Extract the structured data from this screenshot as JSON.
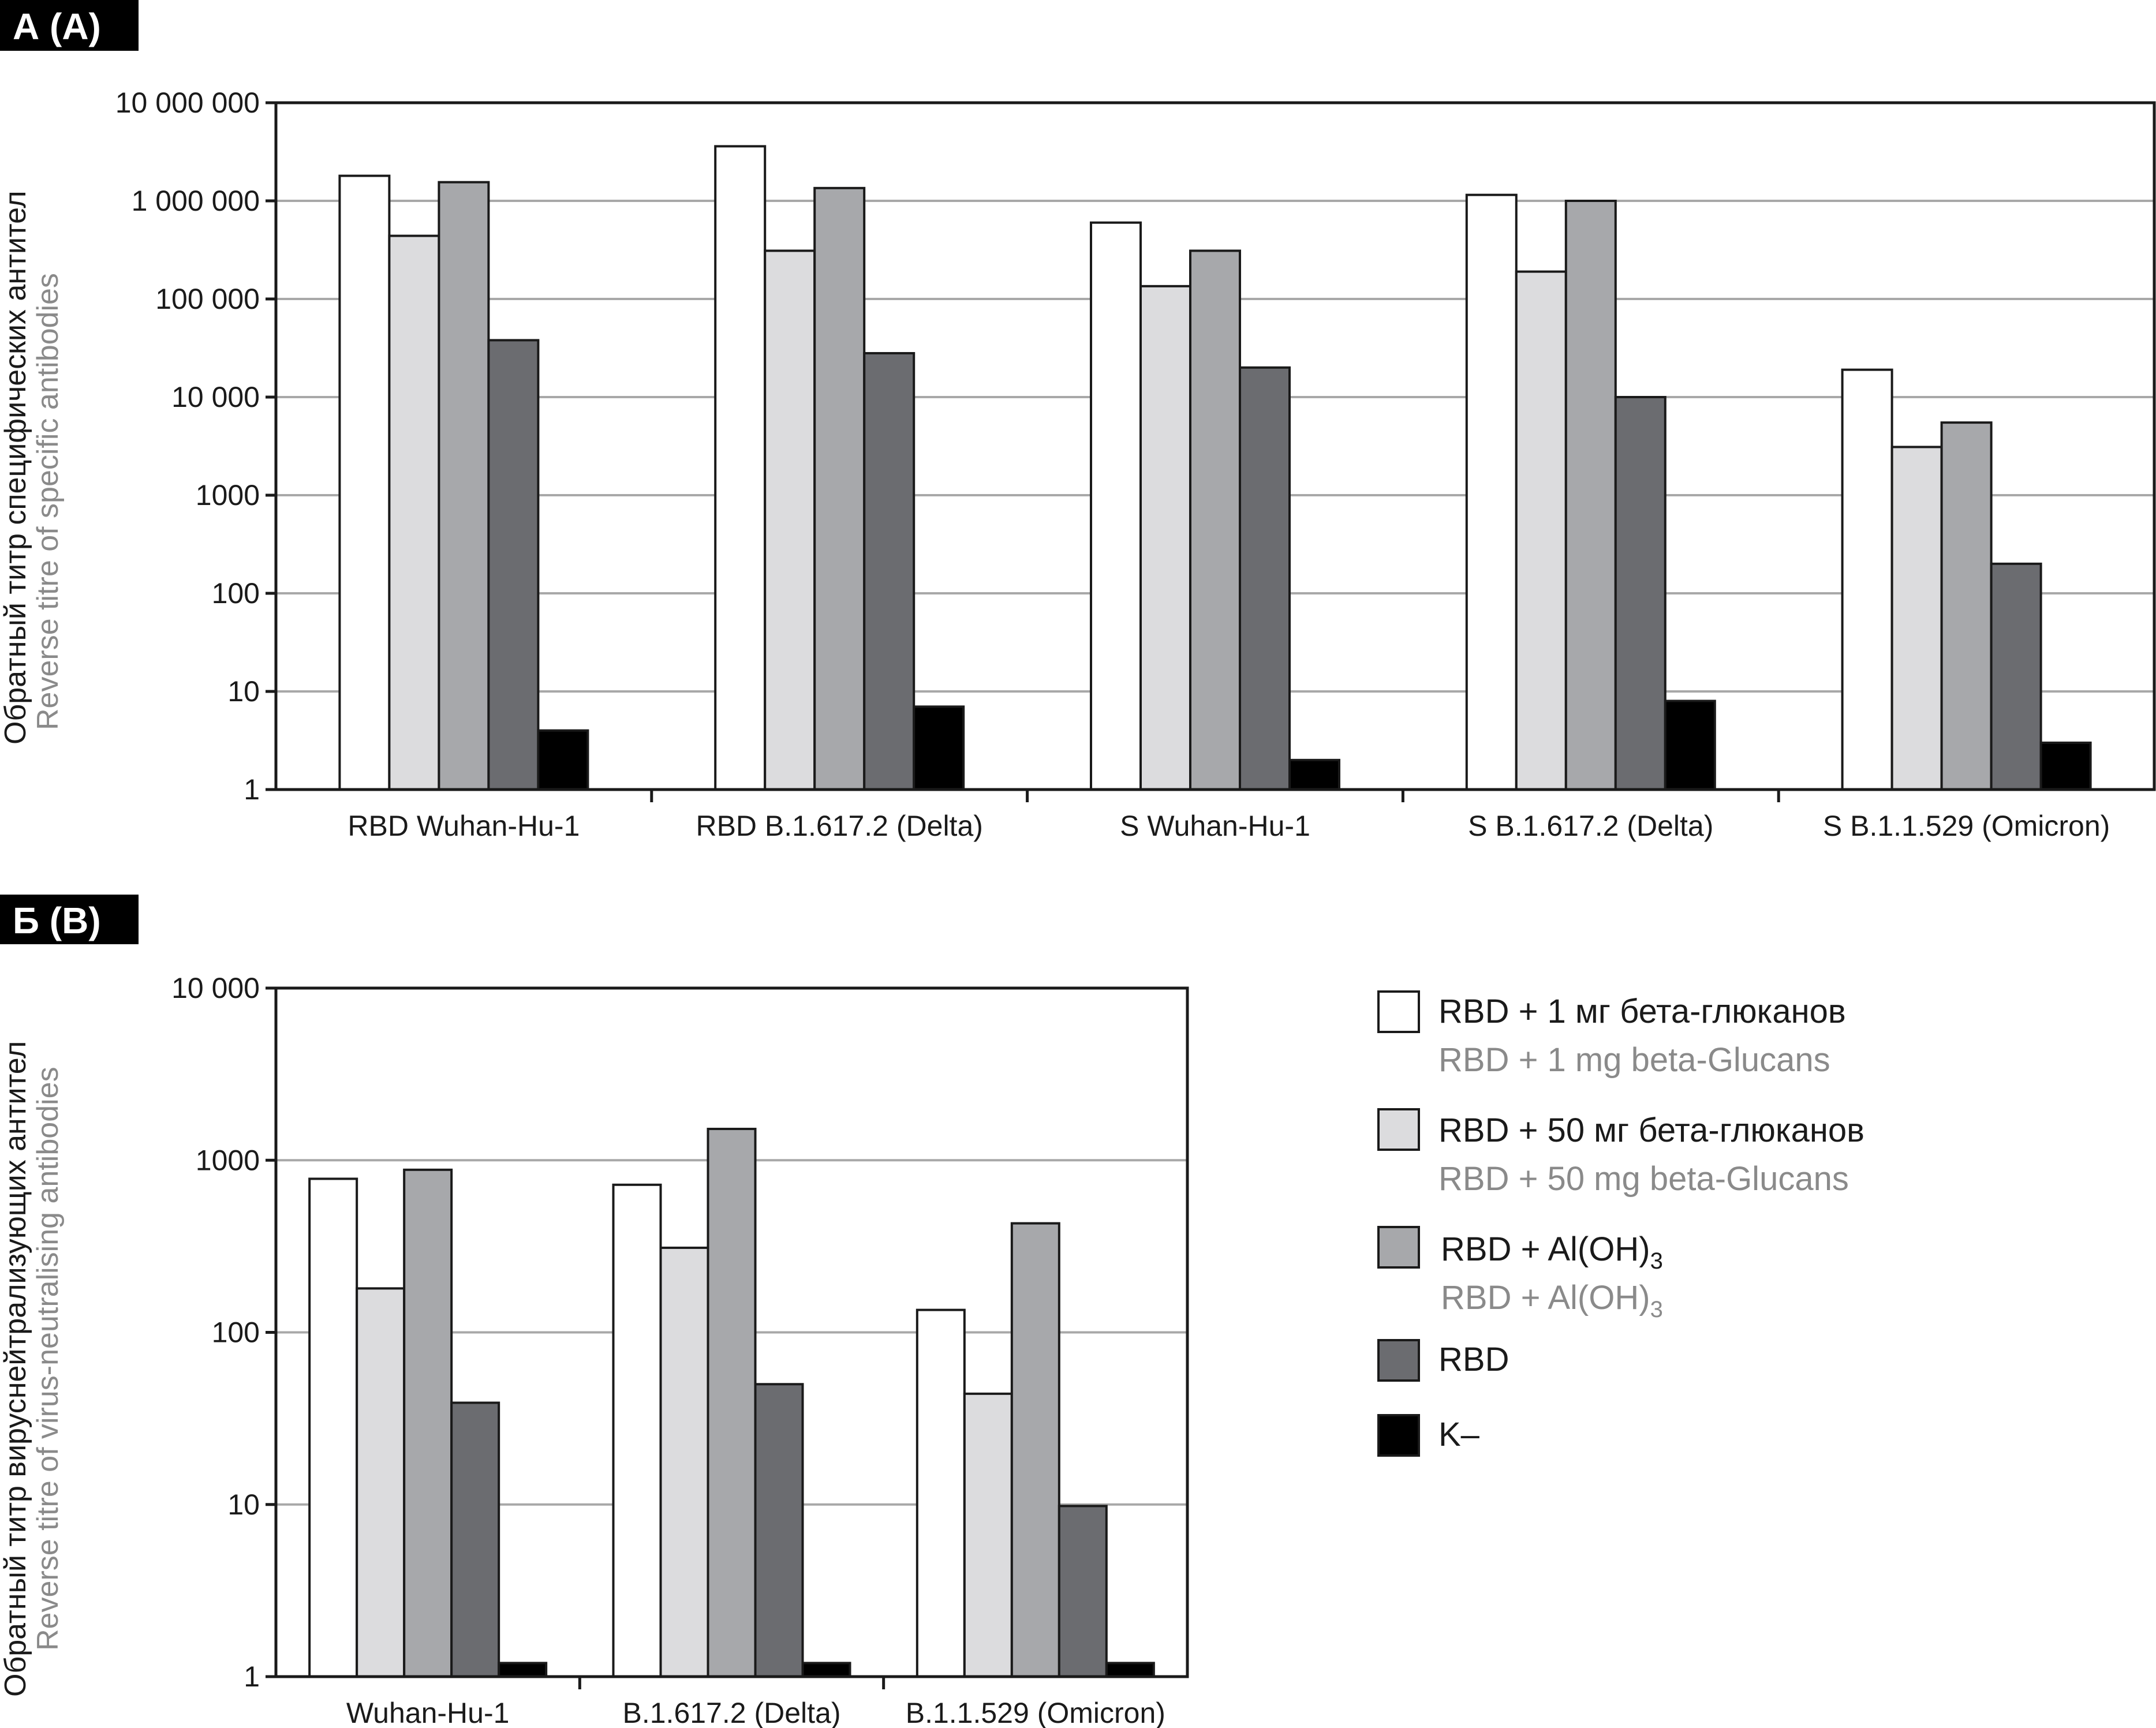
{
  "legend": {
    "items": [
      {
        "ru": "RBD + 1 мг бета-глюканов",
        "en": "RBD + 1 mg beta-Glucans",
        "color": "#ffffff"
      },
      {
        "ru": "RBD + 50 мг бета-глюканов",
        "en": "RBD + 50 mg beta-Glucans",
        "color": "#dcdcde"
      },
      {
        "ru": "RBD + Al(OH)",
        "en": "RBD + Al(OH)",
        "sub": "3",
        "color": "#a7a8ab"
      },
      {
        "ru": "RBD",
        "en": "",
        "color": "#6b6c70"
      },
      {
        "ru": "K–",
        "en": "",
        "color": "#000000"
      }
    ]
  },
  "chart_data": [
    {
      "type": "bar",
      "panel_label": "А (A)",
      "ylabel_ru": "Обратный титр специфических антител",
      "ylabel_en": "Reverse titre of specific antibodies",
      "yscale": "log",
      "ylim": [
        1,
        10000000
      ],
      "yticks": [
        {
          "value": 1,
          "label": "1"
        },
        {
          "value": 10,
          "label": "10"
        },
        {
          "value": 100,
          "label": "100"
        },
        {
          "value": 1000,
          "label": "1000"
        },
        {
          "value": 10000,
          "label": "10 000"
        },
        {
          "value": 100000,
          "label": "100 000"
        },
        {
          "value": 1000000,
          "label": "1 000 000"
        },
        {
          "value": 10000000,
          "label": "10 000 000"
        }
      ],
      "categories": [
        "RBD Wuhan-Hu-1",
        "RBD B.1.617.2 (Delta)",
        "S Wuhan-Hu-1",
        "S B.1.617.2 (Delta)",
        "S B.1.1.529 (Omicron)"
      ],
      "series": [
        {
          "name": "RBD + 1 mg beta-Glucans",
          "values": [
            1800000,
            3600000,
            600000,
            1150000,
            19000
          ]
        },
        {
          "name": "RBD + 50 mg beta-Glucans",
          "values": [
            440000,
            310000,
            135000,
            190000,
            3100
          ]
        },
        {
          "name": "RBD + Al(OH)3",
          "values": [
            1550000,
            1350000,
            310000,
            1000000,
            5500
          ]
        },
        {
          "name": "RBD",
          "values": [
            38000,
            28000,
            20000,
            10000,
            200
          ]
        },
        {
          "name": "K–",
          "values": [
            4,
            7,
            2,
            8,
            3
          ]
        }
      ],
      "grid": true
    },
    {
      "type": "bar",
      "panel_label": "Б (B)",
      "ylabel_ru": "Обратный титр вируснейтрализующих антител",
      "ylabel_en": "Reverse titre of virus-neutralising antibodies",
      "yscale": "log",
      "ylim": [
        1,
        10000
      ],
      "yticks": [
        {
          "value": 1,
          "label": "1"
        },
        {
          "value": 10,
          "label": "10"
        },
        {
          "value": 100,
          "label": "100"
        },
        {
          "value": 1000,
          "label": "1000"
        },
        {
          "value": 10000,
          "label": "10 000"
        }
      ],
      "categories": [
        "Wuhan-Hu-1",
        "B.1.617.2 (Delta)",
        "B.1.1.529 (Omicron)"
      ],
      "series": [
        {
          "name": "RBD + 1 mg beta-Glucans",
          "values": [
            780,
            720,
            135
          ]
        },
        {
          "name": "RBD + 50 mg beta-Glucans",
          "values": [
            180,
            310,
            44
          ]
        },
        {
          "name": "RBD + Al(OH)3",
          "values": [
            880,
            1520,
            430
          ]
        },
        {
          "name": "RBD",
          "values": [
            39,
            50,
            9.8
          ]
        },
        {
          "name": "K–",
          "values": [
            1.2,
            1.2,
            1.2
          ]
        }
      ],
      "grid": true
    }
  ]
}
